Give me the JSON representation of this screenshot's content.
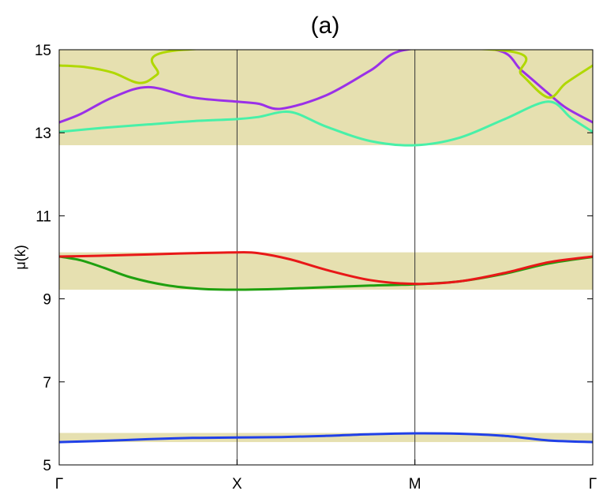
{
  "chart_data": {
    "type": "line",
    "title": "(a)",
    "xlabel": "",
    "ylabel": "μ(k)",
    "xticks": [
      "Γ",
      "X",
      "M",
      "Γ"
    ],
    "xlim": [
      0,
      3
    ],
    "ylim": [
      5,
      15
    ],
    "yticks": [
      5,
      7,
      9,
      11,
      13,
      15
    ],
    "grid": false,
    "vertical_lines_at": [
      1,
      2
    ],
    "colors": {
      "band_fill": "#e6e0b0",
      "axis": "#000000",
      "vline": "#333333"
    },
    "bands": [
      {
        "range": [
          5.55,
          5.77
        ]
      },
      {
        "range": [
          9.22,
          10.12
        ]
      },
      {
        "range": [
          12.7,
          15.0
        ]
      }
    ],
    "series": [
      {
        "color": "#2040e8",
        "points": [
          [
            0,
            5.55
          ],
          [
            0.25,
            5.58
          ],
          [
            0.5,
            5.62
          ],
          [
            0.75,
            5.65
          ],
          [
            1,
            5.66
          ],
          [
            1.25,
            5.67
          ],
          [
            1.5,
            5.7
          ],
          [
            1.75,
            5.74
          ],
          [
            2,
            5.76
          ],
          [
            2.25,
            5.75
          ],
          [
            2.5,
            5.7
          ],
          [
            2.75,
            5.59
          ],
          [
            3,
            5.55
          ]
        ]
      },
      {
        "color": "#1fa00f",
        "points": [
          [
            0,
            10.02
          ],
          [
            0.12,
            9.93
          ],
          [
            0.25,
            9.75
          ],
          [
            0.4,
            9.52
          ],
          [
            0.6,
            9.33
          ],
          [
            0.8,
            9.24
          ],
          [
            1,
            9.22
          ],
          [
            1.25,
            9.24
          ],
          [
            1.5,
            9.28
          ],
          [
            1.75,
            9.32
          ],
          [
            2,
            9.35
          ],
          [
            2.25,
            9.42
          ],
          [
            2.5,
            9.6
          ],
          [
            2.75,
            9.85
          ],
          [
            3,
            10.01
          ]
        ]
      },
      {
        "color": "#e81818",
        "points": [
          [
            0,
            10.02
          ],
          [
            0.25,
            10.04
          ],
          [
            0.5,
            10.07
          ],
          [
            0.75,
            10.1
          ],
          [
            1,
            10.12
          ],
          [
            1.12,
            10.1
          ],
          [
            1.3,
            9.95
          ],
          [
            1.5,
            9.7
          ],
          [
            1.75,
            9.45
          ],
          [
            2,
            9.36
          ],
          [
            2.25,
            9.42
          ],
          [
            2.5,
            9.62
          ],
          [
            2.75,
            9.88
          ],
          [
            3,
            10.02
          ]
        ]
      },
      {
        "color": "#48f0a8",
        "points": [
          [
            0,
            13.02
          ],
          [
            0.25,
            13.12
          ],
          [
            0.5,
            13.2
          ],
          [
            0.75,
            13.28
          ],
          [
            1,
            13.33
          ],
          [
            1.12,
            13.38
          ],
          [
            1.3,
            13.5
          ],
          [
            1.5,
            13.15
          ],
          [
            1.75,
            12.8
          ],
          [
            2,
            12.7
          ],
          [
            2.25,
            12.88
          ],
          [
            2.5,
            13.32
          ],
          [
            2.75,
            13.75
          ],
          [
            2.88,
            13.35
          ],
          [
            3,
            13.02
          ]
        ]
      },
      {
        "color": "#9a30e8",
        "points": [
          [
            0,
            13.25
          ],
          [
            0.12,
            13.45
          ],
          [
            0.3,
            13.85
          ],
          [
            0.5,
            14.1
          ],
          [
            0.75,
            13.85
          ],
          [
            1,
            13.75
          ],
          [
            1.12,
            13.7
          ],
          [
            1.25,
            13.58
          ],
          [
            1.5,
            13.9
          ],
          [
            1.75,
            14.5
          ],
          [
            1.95,
            15.0
          ],
          [
            2.45,
            15.0
          ],
          [
            2.6,
            14.5
          ],
          [
            2.75,
            13.95
          ],
          [
            2.85,
            13.6
          ],
          [
            3,
            13.25
          ]
        ]
      },
      {
        "color": "#b0d800",
        "points": [
          [
            0,
            14.62
          ],
          [
            0.15,
            14.58
          ],
          [
            0.3,
            14.45
          ],
          [
            0.45,
            14.2
          ],
          [
            0.55,
            14.4
          ],
          [
            0.7,
            15.0
          ],
          [
            2.45,
            15.0
          ],
          [
            2.6,
            14.4
          ],
          [
            2.75,
            13.85
          ],
          [
            2.85,
            14.2
          ],
          [
            3,
            14.62
          ]
        ]
      }
    ]
  }
}
